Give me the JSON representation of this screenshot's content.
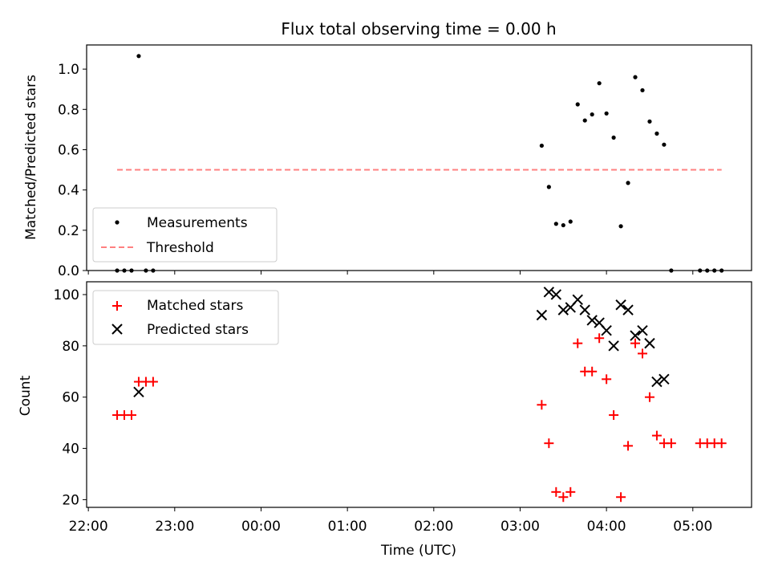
{
  "chart_data": [
    {
      "type": "scatter",
      "title": "Flux total observing time = 0.00 h",
      "xlabel": "",
      "ylabel": "Matched/Predicted stars",
      "ylim": [
        0,
        1.12
      ],
      "xlim_hours_utc": [
        21.98,
        29.68
      ],
      "yticks": [
        0.0,
        0.2,
        0.4,
        0.6,
        0.8,
        1.0
      ],
      "ytick_labels": [
        "0.0",
        "0.2",
        "0.4",
        "0.6",
        "0.8",
        "1.0"
      ],
      "legend": "lower-left",
      "series": [
        {
          "name": "Measurements",
          "marker": "dot",
          "color": "#000000",
          "points": [
            {
              "x": "22:20",
              "y": 0.0
            },
            {
              "x": "22:25",
              "y": 0.0
            },
            {
              "x": "22:30",
              "y": 0.0
            },
            {
              "x": "22:35",
              "y": 1.065
            },
            {
              "x": "22:40",
              "y": 0.0
            },
            {
              "x": "22:45",
              "y": 0.0
            },
            {
              "x": "03:15",
              "y": 0.62
            },
            {
              "x": "03:20",
              "y": 0.415
            },
            {
              "x": "03:25",
              "y": 0.232
            },
            {
              "x": "03:30",
              "y": 0.225
            },
            {
              "x": "03:35",
              "y": 0.243
            },
            {
              "x": "03:40",
              "y": 0.825
            },
            {
              "x": "03:45",
              "y": 0.745
            },
            {
              "x": "03:50",
              "y": 0.775
            },
            {
              "x": "03:55",
              "y": 0.93
            },
            {
              "x": "04:00",
              "y": 0.78
            },
            {
              "x": "04:05",
              "y": 0.66
            },
            {
              "x": "04:10",
              "y": 0.22
            },
            {
              "x": "04:15",
              "y": 0.435
            },
            {
              "x": "04:20",
              "y": 0.96
            },
            {
              "x": "04:25",
              "y": 0.895
            },
            {
              "x": "04:30",
              "y": 0.74
            },
            {
              "x": "04:35",
              "y": 0.68
            },
            {
              "x": "04:40",
              "y": 0.625
            },
            {
              "x": "04:45",
              "y": 0.0
            },
            {
              "x": "05:05",
              "y": 0.0
            },
            {
              "x": "05:10",
              "y": 0.0
            },
            {
              "x": "05:15",
              "y": 0.0
            },
            {
              "x": "05:20",
              "y": 0.0
            }
          ]
        },
        {
          "name": "Threshold",
          "marker": "dashed-line",
          "color": "#ff8080",
          "points": [
            {
              "x": "22:20",
              "y": 0.5
            },
            {
              "x": "05:20",
              "y": 0.5
            }
          ]
        }
      ]
    },
    {
      "type": "scatter",
      "title": "",
      "xlabel": "Time (UTC)",
      "ylabel": "Count",
      "ylim": [
        17,
        105
      ],
      "xlim_hours_utc": [
        21.98,
        29.68
      ],
      "xticks": [
        "22:00",
        "23:00",
        "00:00",
        "01:00",
        "02:00",
        "03:00",
        "04:00",
        "05:00"
      ],
      "yticks": [
        20,
        40,
        60,
        80,
        100
      ],
      "ytick_labels": [
        "20",
        "40",
        "60",
        "80",
        "100"
      ],
      "legend": "top-left",
      "series": [
        {
          "name": "Matched stars",
          "marker": "plus",
          "color": "#ff0000",
          "points": [
            {
              "x": "22:20",
              "y": 53
            },
            {
              "x": "22:25",
              "y": 53
            },
            {
              "x": "22:30",
              "y": 53
            },
            {
              "x": "22:35",
              "y": 66
            },
            {
              "x": "22:40",
              "y": 66
            },
            {
              "x": "22:45",
              "y": 66
            },
            {
              "x": "03:15",
              "y": 57
            },
            {
              "x": "03:20",
              "y": 42
            },
            {
              "x": "03:25",
              "y": 23
            },
            {
              "x": "03:30",
              "y": 21
            },
            {
              "x": "03:35",
              "y": 23
            },
            {
              "x": "03:40",
              "y": 81
            },
            {
              "x": "03:45",
              "y": 70
            },
            {
              "x": "03:50",
              "y": 70
            },
            {
              "x": "03:55",
              "y": 83
            },
            {
              "x": "04:00",
              "y": 67
            },
            {
              "x": "04:05",
              "y": 53
            },
            {
              "x": "04:10",
              "y": 21
            },
            {
              "x": "04:15",
              "y": 41
            },
            {
              "x": "04:20",
              "y": 81
            },
            {
              "x": "04:25",
              "y": 77
            },
            {
              "x": "04:30",
              "y": 60
            },
            {
              "x": "04:35",
              "y": 45
            },
            {
              "x": "04:40",
              "y": 42
            },
            {
              "x": "04:45",
              "y": 42
            },
            {
              "x": "05:05",
              "y": 42
            },
            {
              "x": "05:10",
              "y": 42
            },
            {
              "x": "05:15",
              "y": 42
            },
            {
              "x": "05:20",
              "y": 42
            }
          ]
        },
        {
          "name": "Predicted stars",
          "marker": "x",
          "color": "#000000",
          "points": [
            {
              "x": "22:35",
              "y": 62
            },
            {
              "x": "03:15",
              "y": 92
            },
            {
              "x": "03:20",
              "y": 101
            },
            {
              "x": "03:25",
              "y": 100
            },
            {
              "x": "03:30",
              "y": 94
            },
            {
              "x": "03:35",
              "y": 95
            },
            {
              "x": "03:40",
              "y": 98
            },
            {
              "x": "03:45",
              "y": 94
            },
            {
              "x": "03:50",
              "y": 90
            },
            {
              "x": "03:55",
              "y": 89
            },
            {
              "x": "04:00",
              "y": 86
            },
            {
              "x": "04:05",
              "y": 80
            },
            {
              "x": "04:10",
              "y": 96
            },
            {
              "x": "04:15",
              "y": 94
            },
            {
              "x": "04:20",
              "y": 84
            },
            {
              "x": "04:25",
              "y": 86
            },
            {
              "x": "04:30",
              "y": 81
            },
            {
              "x": "04:35",
              "y": 66
            },
            {
              "x": "04:40",
              "y": 67
            }
          ]
        }
      ]
    }
  ]
}
